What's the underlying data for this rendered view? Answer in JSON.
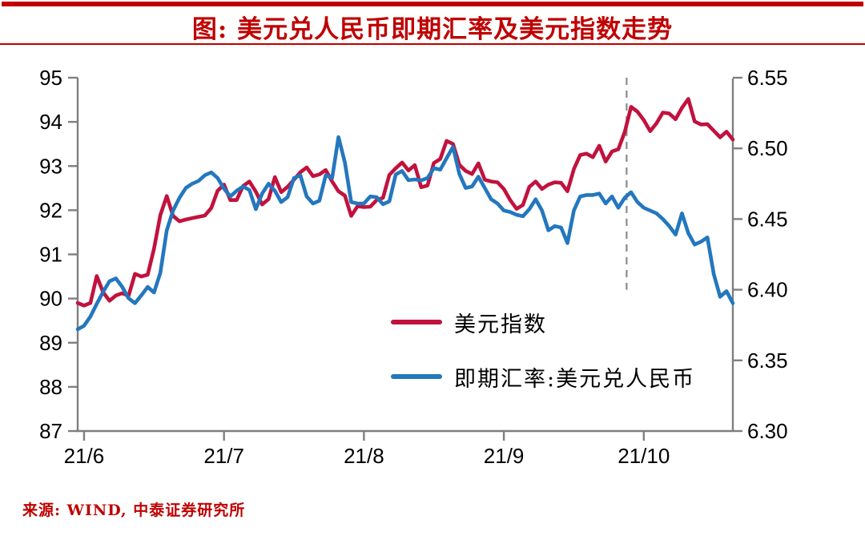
{
  "title": "图: 美元兑人民币即期汇率及美元指数走势",
  "source_note": "来源: WIND, 中泰证券研究所",
  "colors": {
    "accent_red": "#C00000",
    "usd_index_line": "#C1123E",
    "cny_spot_line": "#2377BE",
    "axis_gray": "#7F7F7F",
    "dashed_gray": "#8A8A8A",
    "tick_text": "#000000"
  },
  "chart_data": {
    "type": "line",
    "title": "图: 美元兑人民币即期汇率及美元指数走势",
    "grid": false,
    "legend_position": "center-right",
    "x_tick_labels": [
      "21/6",
      "21/7",
      "21/8",
      "21/9",
      "21/10"
    ],
    "x_tick_indices": [
      1,
      23,
      45,
      67,
      89
    ],
    "left_axis": {
      "min": 87,
      "max": 95,
      "ticks": [
        95,
        94,
        93,
        92,
        91,
        90,
        89,
        88,
        87
      ]
    },
    "right_axis": {
      "min": 6.3,
      "max": 6.55,
      "ticks": [
        "6.55",
        "6.50",
        "6.45",
        "6.40",
        "6.35",
        "6.30"
      ]
    },
    "dashed_vline": {
      "x_index": 86.3,
      "top_value": 95,
      "bottom_value": 90.2,
      "note": "late-September marker"
    },
    "series": [
      {
        "name": "美元指数",
        "axis": "left",
        "color": "#C1123E",
        "values": [
          89.9,
          89.84,
          89.9,
          90.51,
          90.14,
          89.95,
          90.07,
          90.12,
          90.06,
          90.56,
          90.5,
          90.54,
          91.13,
          91.89,
          92.32,
          91.87,
          91.75,
          91.79,
          91.82,
          91.85,
          91.88,
          92.05,
          92.44,
          92.58,
          92.23,
          92.23,
          92.55,
          92.65,
          92.42,
          92.13,
          92.25,
          92.75,
          92.41,
          92.53,
          92.69,
          92.86,
          92.97,
          92.77,
          92.81,
          92.91,
          92.65,
          92.43,
          92.33,
          91.87,
          92.09,
          92.07,
          92.08,
          92.23,
          92.28,
          92.8,
          92.95,
          93.08,
          92.9,
          93.02,
          92.52,
          92.56,
          93.07,
          93.16,
          93.57,
          93.5,
          93.03,
          92.89,
          92.82,
          93.06,
          92.69,
          92.65,
          92.63,
          92.48,
          92.23,
          92.03,
          92.12,
          92.53,
          92.65,
          92.48,
          92.58,
          92.63,
          92.62,
          92.43,
          92.93,
          93.25,
          93.28,
          93.2,
          93.46,
          93.1,
          93.33,
          93.38,
          93.77,
          94.34,
          94.23,
          94.04,
          93.79,
          93.97,
          94.21,
          94.19,
          94.06,
          94.32,
          94.52,
          94.01,
          93.94,
          93.95,
          93.8,
          93.65,
          93.78,
          93.6
        ]
      },
      {
        "name": "即期汇率:美元兑人民币",
        "axis": "right",
        "color": "#2377BE",
        "values": [
          6.372,
          6.3745,
          6.381,
          6.39,
          6.3985,
          6.406,
          6.408,
          6.402,
          6.394,
          6.3905,
          6.396,
          6.402,
          6.398,
          6.412,
          6.442,
          6.456,
          6.465,
          6.472,
          6.475,
          6.477,
          6.481,
          6.483,
          6.479,
          6.4715,
          6.466,
          6.47,
          6.473,
          6.4705,
          6.457,
          6.468,
          6.475,
          6.47,
          6.462,
          6.4655,
          6.479,
          6.481,
          6.466,
          6.461,
          6.463,
          6.481,
          6.479,
          6.508,
          6.49,
          6.462,
          6.461,
          6.461,
          6.466,
          6.4655,
          6.4605,
          6.4625,
          6.4815,
          6.484,
          6.4775,
          6.478,
          6.4774,
          6.479,
          6.486,
          6.485,
          6.493,
          6.501,
          6.482,
          6.472,
          6.473,
          6.48,
          6.472,
          6.464,
          6.461,
          6.456,
          6.455,
          6.453,
          6.452,
          6.457,
          6.464,
          6.456,
          6.442,
          6.445,
          6.444,
          6.433,
          6.456,
          6.466,
          6.467,
          6.467,
          6.468,
          6.461,
          6.466,
          6.458,
          6.465,
          6.469,
          6.462,
          6.458,
          6.456,
          6.454,
          6.45,
          6.445,
          6.439,
          6.454,
          6.44,
          6.432,
          6.434,
          6.437,
          6.411,
          6.395,
          6.399,
          6.3905
        ]
      }
    ]
  }
}
